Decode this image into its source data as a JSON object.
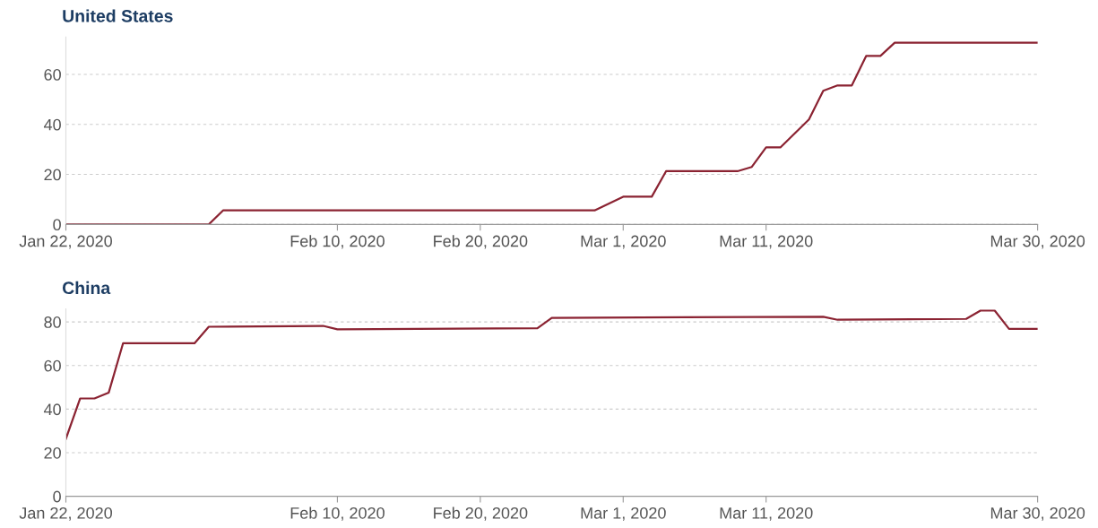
{
  "chart_data": [
    {
      "type": "line",
      "title": "United States",
      "x": [
        "2020-01-22",
        "2020-02-01",
        "2020-02-02",
        "2020-02-28",
        "2020-03-01",
        "2020-03-03",
        "2020-03-04",
        "2020-03-09",
        "2020-03-10",
        "2020-03-11",
        "2020-03-12",
        "2020-03-14",
        "2020-03-15",
        "2020-03-16",
        "2020-03-17",
        "2020-03-18",
        "2020-03-19",
        "2020-03-20",
        "2020-03-30"
      ],
      "series": [
        {
          "color": "#8b2332",
          "values": [
            0,
            0,
            5.6,
            5.6,
            11.1,
            11.1,
            21.3,
            21.3,
            23,
            30.8,
            30.8,
            42,
            53.5,
            55.6,
            55.6,
            67.4,
            67.4,
            72.7,
            72.7
          ]
        }
      ],
      "xlim": [
        "2020-01-22",
        "2020-03-30"
      ],
      "xticks": [
        {
          "value": "2020-01-22",
          "label": "Jan 22, 2020"
        },
        {
          "value": "2020-02-10",
          "label": "Feb 10, 2020"
        },
        {
          "value": "2020-02-20",
          "label": "Feb 20, 2020"
        },
        {
          "value": "2020-03-01",
          "label": "Mar 1, 2020"
        },
        {
          "value": "2020-03-11",
          "label": "Mar 11, 2020"
        },
        {
          "value": "2020-03-30",
          "label": "Mar 30, 2020"
        }
      ],
      "ylim": [
        0,
        75
      ],
      "yticks": [
        0,
        20,
        40,
        60
      ],
      "grid": "y",
      "legend": false
    },
    {
      "type": "line",
      "title": "China",
      "x": [
        "2020-01-22",
        "2020-01-23",
        "2020-01-24",
        "2020-01-25",
        "2020-01-26",
        "2020-01-31",
        "2020-02-01",
        "2020-02-09",
        "2020-02-10",
        "2020-02-24",
        "2020-02-25",
        "2020-03-15",
        "2020-03-16",
        "2020-03-25",
        "2020-03-26",
        "2020-03-27",
        "2020-03-28",
        "2020-03-30"
      ],
      "series": [
        {
          "color": "#8b2332",
          "values": [
            26.4,
            44.9,
            44.9,
            47.6,
            70.2,
            70.2,
            77.8,
            78.2,
            76.6,
            77.1,
            81.9,
            82.4,
            81,
            81.4,
            85.2,
            85.2,
            76.8,
            76.8
          ]
        }
      ],
      "xlim": [
        "2020-01-22",
        "2020-03-30"
      ],
      "xticks": [
        {
          "value": "2020-01-22",
          "label": "Jan 22, 2020"
        },
        {
          "value": "2020-02-10",
          "label": "Feb 10, 2020"
        },
        {
          "value": "2020-02-20",
          "label": "Feb 20, 2020"
        },
        {
          "value": "2020-03-01",
          "label": "Mar 1, 2020"
        },
        {
          "value": "2020-03-11",
          "label": "Mar 11, 2020"
        },
        {
          "value": "2020-03-30",
          "label": "Mar 30, 2020"
        }
      ],
      "ylim": [
        0,
        86
      ],
      "yticks": [
        0,
        20,
        40,
        60,
        80
      ],
      "grid": "y",
      "legend": false
    }
  ]
}
